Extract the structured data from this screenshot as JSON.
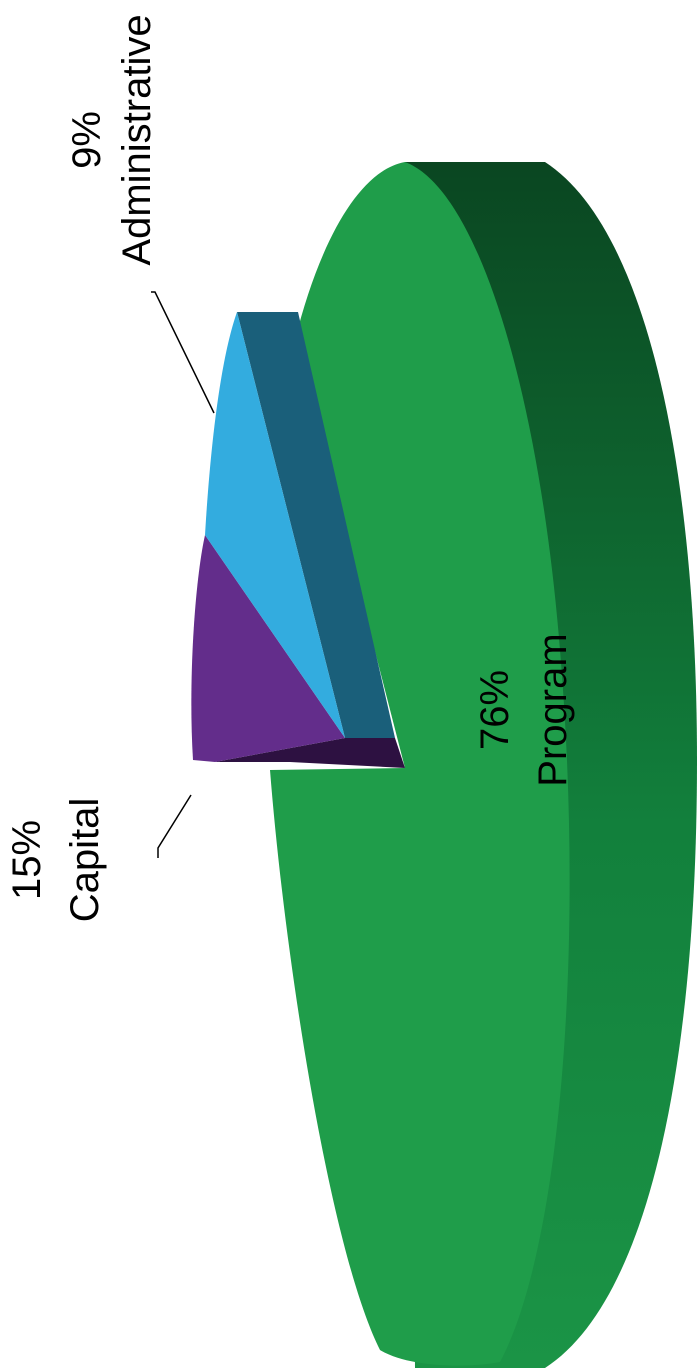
{
  "chart_data": {
    "type": "pie",
    "style": "3d-exploded",
    "orientation": "rotated-90",
    "title": "",
    "slices": [
      {
        "name": "Program",
        "value": 76,
        "label": "76%",
        "color": "#1f9d4a",
        "side_color": "#0b4a23"
      },
      {
        "name": "Capital",
        "value": 15,
        "label": "15%",
        "color": "#632d8b",
        "side_color": "#2d1141"
      },
      {
        "name": "Administrative",
        "value": 9,
        "label": "9%",
        "color": "#33acdf",
        "side_color": "#1a5f7a"
      }
    ],
    "legend": "none",
    "data_labels": "outside-with-leader-lines"
  }
}
